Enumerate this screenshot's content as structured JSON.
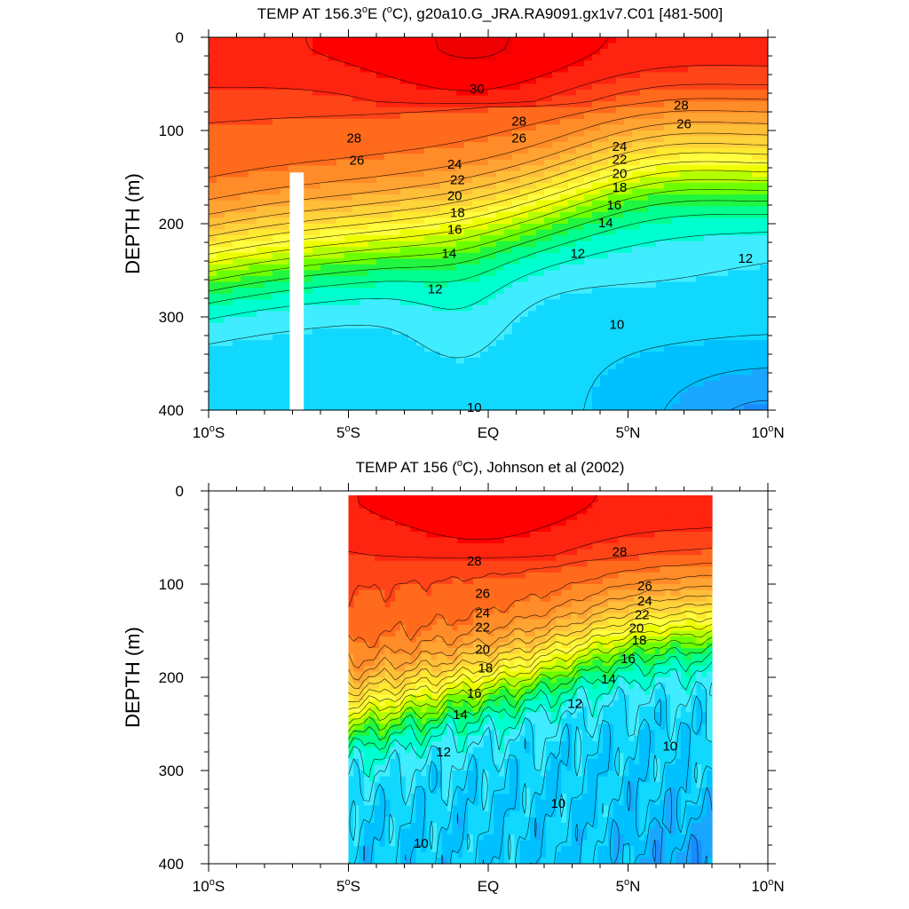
{
  "chart_data": [
    {
      "type": "contour",
      "title_prefix": "TEMP AT 156.3",
      "title_deg": "o",
      "title_mid": "E (",
      "title_unit_deg": "o",
      "title_suffix": "C), g20a10.G_JRA.RA9091.gx1v7.C01 [481-500]",
      "ylabel": "DEPTH (m)",
      "xlim": [
        -10,
        10
      ],
      "ylim": [
        0,
        400
      ],
      "y_reversed": true,
      "yticks": [
        "0",
        "100",
        "200",
        "300",
        "400"
      ],
      "xticks": [
        {
          "main": "10",
          "deg": "o",
          "suffix": "S"
        },
        {
          "main": "5",
          "deg": "o",
          "suffix": "S"
        },
        {
          "main": "EQ",
          "deg": "",
          "suffix": ""
        },
        {
          "main": "5",
          "deg": "o",
          "suffix": "N"
        },
        {
          "main": "10",
          "deg": "o",
          "suffix": "N"
        }
      ],
      "data_x_range": [
        -10,
        10
      ],
      "masked_region": {
        "x": [
          -7.1,
          -6.6
        ],
        "y": [
          145,
          400
        ]
      },
      "contour_labels": [
        {
          "text": "30",
          "x": -0.4,
          "y": 55
        },
        {
          "text": "28",
          "x": 1.1,
          "y": 90
        },
        {
          "text": "26",
          "x": 1.1,
          "y": 108
        },
        {
          "text": "28",
          "x": 6.9,
          "y": 73
        },
        {
          "text": "26",
          "x": 7.0,
          "y": 93
        },
        {
          "text": "28",
          "x": -4.8,
          "y": 108
        },
        {
          "text": "26",
          "x": -4.7,
          "y": 132
        },
        {
          "text": "24",
          "x": -1.2,
          "y": 136
        },
        {
          "text": "22",
          "x": -1.1,
          "y": 153
        },
        {
          "text": "20",
          "x": -1.2,
          "y": 170
        },
        {
          "text": "18",
          "x": -1.1,
          "y": 188
        },
        {
          "text": "16",
          "x": -1.2,
          "y": 206
        },
        {
          "text": "14",
          "x": -1.4,
          "y": 232
        },
        {
          "text": "12",
          "x": -1.9,
          "y": 270
        },
        {
          "text": "10",
          "x": -0.5,
          "y": 397
        },
        {
          "text": "24",
          "x": 4.7,
          "y": 117
        },
        {
          "text": "22",
          "x": 4.7,
          "y": 131
        },
        {
          "text": "20",
          "x": 4.7,
          "y": 146
        },
        {
          "text": "18",
          "x": 4.7,
          "y": 161
        },
        {
          "text": "16",
          "x": 4.5,
          "y": 180
        },
        {
          "text": "14",
          "x": 4.2,
          "y": 199
        },
        {
          "text": "12",
          "x": 3.2,
          "y": 232
        },
        {
          "text": "12",
          "x": 9.2,
          "y": 237
        },
        {
          "text": "10",
          "x": 4.6,
          "y": 308
        }
      ]
    },
    {
      "type": "contour",
      "title": "TEMP AT 156 (",
      "title_deg": "o",
      "title_suffix": "C), Johnson et al (2002)",
      "ylabel": "DEPTH (m)",
      "xlim": [
        -10,
        10
      ],
      "ylim": [
        0,
        400
      ],
      "y_reversed": true,
      "yticks": [
        "0",
        "100",
        "200",
        "300",
        "400"
      ],
      "xticks": [
        {
          "main": "10",
          "deg": "o",
          "suffix": "S"
        },
        {
          "main": "5",
          "deg": "o",
          "suffix": "S"
        },
        {
          "main": "EQ",
          "deg": "",
          "suffix": ""
        },
        {
          "main": "5",
          "deg": "o",
          "suffix": "N"
        },
        {
          "main": "10",
          "deg": "o",
          "suffix": "N"
        }
      ],
      "data_x_range": [
        -5,
        8
      ],
      "contour_labels": [
        {
          "text": "28",
          "x": -0.5,
          "y": 75
        },
        {
          "text": "28",
          "x": 4.7,
          "y": 65
        },
        {
          "text": "26",
          "x": -0.2,
          "y": 110
        },
        {
          "text": "24",
          "x": -0.2,
          "y": 131
        },
        {
          "text": "22",
          "x": -0.2,
          "y": 146
        },
        {
          "text": "20",
          "x": -0.2,
          "y": 170
        },
        {
          "text": "18",
          "x": -0.1,
          "y": 190
        },
        {
          "text": "16",
          "x": -0.5,
          "y": 217
        },
        {
          "text": "14",
          "x": -1.0,
          "y": 240
        },
        {
          "text": "12",
          "x": -1.6,
          "y": 280
        },
        {
          "text": "10",
          "x": -2.4,
          "y": 378
        },
        {
          "text": "26",
          "x": 5.6,
          "y": 102
        },
        {
          "text": "24",
          "x": 5.6,
          "y": 118
        },
        {
          "text": "22",
          "x": 5.5,
          "y": 133
        },
        {
          "text": "20",
          "x": 5.3,
          "y": 147
        },
        {
          "text": "18",
          "x": 5.4,
          "y": 160
        },
        {
          "text": "16",
          "x": 5.0,
          "y": 180
        },
        {
          "text": "14",
          "x": 4.3,
          "y": 202
        },
        {
          "text": "12",
          "x": 3.1,
          "y": 228
        },
        {
          "text": "10",
          "x": 6.5,
          "y": 274
        },
        {
          "text": "10",
          "x": 2.5,
          "y": 335
        }
      ]
    }
  ],
  "colors": {
    "palette": [
      "#0000ff",
      "#0a3bf0",
      "#1166ee",
      "#1a8cff",
      "#1aa6ff",
      "#00c0ff",
      "#10d8ff",
      "#40ecff",
      "#00ffd0",
      "#00ff90",
      "#20f540",
      "#6cff00",
      "#b4ff00",
      "#ecff00",
      "#ffff40",
      "#ffea30",
      "#ffd33a",
      "#ffbe38",
      "#ffa433",
      "#ff8c28",
      "#ff6a1c",
      "#ff4418",
      "#ff2410",
      "#ff0000",
      "#ee0000",
      "#e00000",
      "#cc0000"
    ],
    "line": "#000000"
  }
}
